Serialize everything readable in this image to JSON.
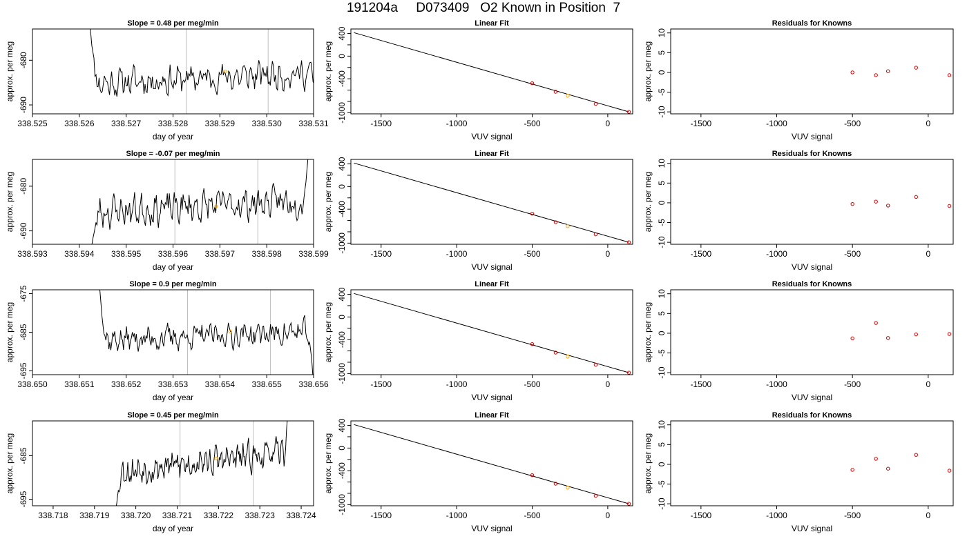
{
  "page_title": "191204a     D073409   O2 Known in Position  7",
  "colors": {
    "trace": "#000000",
    "marker_orange": "#ffa500",
    "marker_red": "#cc0000",
    "vline": "#bebebe",
    "axis": "#000000"
  },
  "chart_data": [
    {
      "type": "line",
      "row": 0,
      "panel": "time-series",
      "title": "Slope =  0.48  per meg/min",
      "xlabel": "day of year",
      "ylabel": "approx. per meg",
      "xlim": [
        338.525,
        338.531
      ],
      "ylim": [
        -692,
        -673
      ],
      "xticks": [
        "338.525",
        "338.526",
        "338.527",
        "338.528",
        "338.529",
        "338.530",
        "338.531"
      ],
      "yticks": [
        "-680",
        "-690"
      ],
      "seed": 11,
      "trace": {
        "start": 338.5262,
        "end": 338.5311,
        "base": -684.0,
        "slope_per_day": 500,
        "amp": 2.0,
        "edge_start": -670,
        "edge_end": -693
      },
      "vlines": [
        338.52828,
        338.53003
      ],
      "marker": {
        "x": 338.52912,
        "y": -682.5
      }
    },
    {
      "type": "scatter",
      "row": 0,
      "panel": "linear-fit",
      "title": "Linear Fit",
      "xlabel": "VUV signal",
      "ylabel": "approx. per meg",
      "xlim": [
        -1700,
        165
      ],
      "ylim": [
        -1020,
        480
      ],
      "xticks": [
        "-1500",
        "-1000",
        "-500",
        "0"
      ],
      "yticks": [
        "-1000",
        "-800",
        "-600",
        "-400",
        "-200",
        "0",
        "200",
        "400"
      ],
      "ytick_labels": [
        "-1000",
        "",
        "",
        "-400",
        "",
        "0",
        "",
        "400"
      ],
      "fit_line": {
        "x": [
          -1680,
          140
        ],
        "y": [
          415,
          -985
        ]
      },
      "points": {
        "x": [
          -500,
          -345,
          -265,
          -80,
          140
        ],
        "y": [
          -480,
          -630,
          -700,
          -845,
          -985
        ]
      },
      "highlight_index": 2
    },
    {
      "type": "scatter",
      "row": 0,
      "panel": "residuals",
      "title": "Residuals for Knowns",
      "xlabel": "VUV signal",
      "ylabel": "approx. per meg",
      "xlim": [
        -1700,
        165
      ],
      "ylim": [
        -10.5,
        11
      ],
      "xticks": [
        "-1500",
        "-1000",
        "-500",
        "0"
      ],
      "yticks": [
        "10",
        "5",
        "0",
        "-5",
        "-10"
      ],
      "points": {
        "x": [
          -500,
          -345,
          -265,
          -80,
          140
        ],
        "y": [
          0.0,
          -0.7,
          0.3,
          1.2,
          -0.7
        ]
      }
    },
    {
      "type": "line",
      "row": 1,
      "panel": "time-series",
      "title": "Slope =  -0.07  per meg/min",
      "xlabel": "day of year",
      "ylabel": "approx. per meg",
      "xlim": [
        338.593,
        338.599
      ],
      "ylim": [
        -693,
        -674
      ],
      "xticks": [
        "338.593",
        "338.594",
        "338.595",
        "338.596",
        "338.597",
        "338.598",
        "338.599"
      ],
      "yticks": [
        "-680",
        "-690"
      ],
      "seed": 23,
      "trace": {
        "start": 338.59425,
        "end": 338.5989,
        "base": -684.5,
        "slope_per_day": 550,
        "amp": 2.2,
        "edge_start": -694,
        "edge_end": -672
      },
      "vlines": [
        338.59604,
        338.59781
      ],
      "marker": {
        "x": 338.59692,
        "y": -684.5
      }
    },
    {
      "type": "scatter",
      "row": 1,
      "panel": "linear-fit",
      "title": "Linear Fit",
      "xlabel": "VUV signal",
      "ylabel": "approx. per meg",
      "xlim": [
        -1700,
        165
      ],
      "ylim": [
        -1020,
        480
      ],
      "xticks": [
        "-1500",
        "-1000",
        "-500",
        "0"
      ],
      "yticks": [
        "-1000",
        "-800",
        "-600",
        "-400",
        "-200",
        "0",
        "200",
        "400"
      ],
      "ytick_labels": [
        "-1000",
        "",
        "",
        "-400",
        "",
        "0",
        "",
        "400"
      ],
      "fit_line": {
        "x": [
          -1680,
          140
        ],
        "y": [
          415,
          -985
        ]
      },
      "points": {
        "x": [
          -500,
          -345,
          -265,
          -80,
          140
        ],
        "y": [
          -480,
          -630,
          -700,
          -845,
          -985
        ]
      },
      "highlight_index": 2
    },
    {
      "type": "scatter",
      "row": 1,
      "panel": "residuals",
      "title": "Residuals for Knowns",
      "xlabel": "VUV signal",
      "ylabel": "approx. per meg",
      "xlim": [
        -1700,
        165
      ],
      "ylim": [
        -10.5,
        11
      ],
      "xticks": [
        "-1500",
        "-1000",
        "-500",
        "0"
      ],
      "yticks": [
        "10",
        "5",
        "0",
        "-5",
        "-10"
      ],
      "points": {
        "x": [
          -500,
          -345,
          -265,
          -80,
          140
        ],
        "y": [
          -0.3,
          0.3,
          -0.7,
          1.5,
          -0.8
        ]
      }
    },
    {
      "type": "line",
      "row": 2,
      "panel": "time-series",
      "title": "Slope =  0.9  per meg/min",
      "xlabel": "day of year",
      "ylabel": "approx. per meg",
      "xlim": [
        338.65,
        338.656
      ],
      "ylim": [
        -696,
        -674
      ],
      "xticks": [
        "338.650",
        "338.651",
        "338.652",
        "338.653",
        "338.654",
        "338.655",
        "338.656"
      ],
      "yticks": [
        "-675",
        "-685",
        "-695"
      ],
      "seed": 37,
      "trace": {
        "start": 338.6514,
        "end": 338.656,
        "base": -686.0,
        "slope_per_day": 500,
        "amp": 2.0,
        "edge_start": -670,
        "edge_end": -698
      },
      "vlines": [
        338.65331,
        338.65508
      ],
      "marker": {
        "x": 338.65422,
        "y": -684.8
      }
    },
    {
      "type": "scatter",
      "row": 2,
      "panel": "linear-fit",
      "title": "Linear Fit",
      "xlabel": "VUV signal",
      "ylabel": "approx. per meg",
      "xlim": [
        -1700,
        165
      ],
      "ylim": [
        -1020,
        480
      ],
      "xticks": [
        "-1500",
        "-1000",
        "-500",
        "0"
      ],
      "yticks": [
        "-1000",
        "-800",
        "-600",
        "-400",
        "-200",
        "0",
        "200",
        "400"
      ],
      "ytick_labels": [
        "-1000",
        "",
        "",
        "-400",
        "",
        "0",
        "",
        "400"
      ],
      "fit_line": {
        "x": [
          -1680,
          140
        ],
        "y": [
          415,
          -985
        ]
      },
      "points": {
        "x": [
          -500,
          -345,
          -265,
          -80,
          140
        ],
        "y": [
          -480,
          -630,
          -700,
          -845,
          -985
        ]
      },
      "highlight_index": 2
    },
    {
      "type": "scatter",
      "row": 2,
      "panel": "residuals",
      "title": "Residuals for Knowns",
      "xlabel": "VUV signal",
      "ylabel": "approx. per meg",
      "xlim": [
        -1700,
        165
      ],
      "ylim": [
        -10.5,
        11
      ],
      "xticks": [
        "-1500",
        "-1000",
        "-500",
        "0"
      ],
      "yticks": [
        "10",
        "5",
        "0",
        "-5",
        "-10"
      ],
      "points": {
        "x": [
          -500,
          -345,
          -265,
          -80,
          140
        ],
        "y": [
          -1.3,
          2.6,
          -1.2,
          -0.3,
          -0.2
        ]
      }
    },
    {
      "type": "line",
      "row": 3,
      "panel": "time-series",
      "title": "Slope =  0.45  per meg/min",
      "xlabel": "day of year",
      "ylabel": "approx. per meg",
      "xlim": [
        338.7175,
        338.7243
      ],
      "ylim": [
        -696.5,
        -677
      ],
      "xticks": [
        "338.718",
        "338.719",
        "338.720",
        "338.721",
        "338.722",
        "338.723",
        "338.724"
      ],
      "yticks": [
        "-685",
        "-695"
      ],
      "seed": 53,
      "trace": {
        "start": 338.7195,
        "end": 338.7237,
        "base": -686.5,
        "slope_per_day": 1100,
        "amp": 2.0,
        "edge_start": -698,
        "edge_end": -675
      },
      "vlines": [
        338.72107,
        338.72284
      ],
      "marker": {
        "x": 338.72194,
        "y": -685.6
      }
    },
    {
      "type": "scatter",
      "row": 3,
      "panel": "linear-fit",
      "title": "Linear Fit",
      "xlabel": "VUV signal",
      "ylabel": "approx. per meg",
      "xlim": [
        -1700,
        165
      ],
      "ylim": [
        -1020,
        480
      ],
      "xticks": [
        "-1500",
        "-1000",
        "-500",
        "0"
      ],
      "yticks": [
        "-1000",
        "-800",
        "-600",
        "-400",
        "-200",
        "0",
        "200",
        "400"
      ],
      "ytick_labels": [
        "-1000",
        "",
        "",
        "-400",
        "",
        "0",
        "",
        "400"
      ],
      "fit_line": {
        "x": [
          -1680,
          140
        ],
        "y": [
          415,
          -985
        ]
      },
      "points": {
        "x": [
          -500,
          -345,
          -265,
          -80,
          140
        ],
        "y": [
          -480,
          -630,
          -700,
          -845,
          -985
        ]
      },
      "highlight_index": 2
    },
    {
      "type": "scatter",
      "row": 3,
      "panel": "residuals",
      "title": "Residuals for Knowns",
      "xlabel": "VUV signal",
      "ylabel": "approx. per meg",
      "xlim": [
        -1700,
        165
      ],
      "ylim": [
        -10.5,
        11
      ],
      "xticks": [
        "-1500",
        "-1000",
        "-500",
        "0"
      ],
      "yticks": [
        "10",
        "5",
        "0",
        "-5",
        "-10"
      ],
      "points": {
        "x": [
          -500,
          -345,
          -265,
          -80,
          140
        ],
        "y": [
          -1.4,
          1.4,
          -1.1,
          2.4,
          -1.6
        ]
      }
    }
  ]
}
